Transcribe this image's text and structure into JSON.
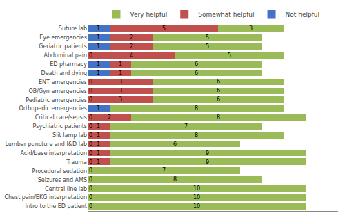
{
  "chart_data": {
    "type": "bar",
    "orientation": "horizontal",
    "stacked": true,
    "data_labels": true,
    "categories": [
      "Intro to the ED patient",
      "Chest pain/EKG interpretation",
      "Central line lab",
      "Seizures and AMS",
      "Procedural sedation",
      "Trauma",
      "Acid/base interpretation",
      "Lumbar puncture and I&D lab",
      "Slit lamp lab",
      "Psychiatric patients",
      "Critical care/sepsis",
      "Orthopedic emergencies",
      "Pediatric emergencies",
      "OB/Gyn emergencies",
      "ENT emergencies",
      "Death and dying",
      "ED pharmacy",
      "Abdominal pain",
      "Geriatric patients",
      "Eye emergencies",
      "Suture lab"
    ],
    "series": [
      {
        "name": "Not helpful",
        "color": "#4472c4",
        "values": [
          0,
          0,
          0,
          0,
          0,
          0,
          0,
          0,
          0,
          0,
          0,
          1,
          0,
          0,
          0,
          1,
          1,
          0,
          1,
          1,
          1
        ]
      },
      {
        "name": "Somewhat helpful",
        "color": "#c0504d",
        "values": [
          0,
          0,
          0,
          0,
          0,
          1,
          1,
          1,
          1,
          1,
          2,
          0,
          3,
          3,
          3,
          1,
          1,
          4,
          2,
          2,
          5
        ],
        "value_labels": [
          null,
          null,
          null,
          null,
          null,
          "1",
          "1",
          "1",
          "1",
          "1",
          "2",
          null,
          "3",
          "3",
          "3",
          "1",
          "1",
          "4",
          "2",
          "2",
          "5"
        ]
      },
      {
        "name": "Very helpful",
        "color": "#9bbb59",
        "values": [
          10,
          10,
          10,
          8,
          7,
          9,
          9,
          6,
          8,
          7,
          8,
          8,
          6,
          6,
          6,
          6,
          6,
          5,
          5,
          5,
          3
        ]
      }
    ],
    "xlim": [
      0,
      11.5
    ],
    "xticks": [],
    "tick_labels": "y",
    "grid": false,
    "legend": "top"
  }
}
